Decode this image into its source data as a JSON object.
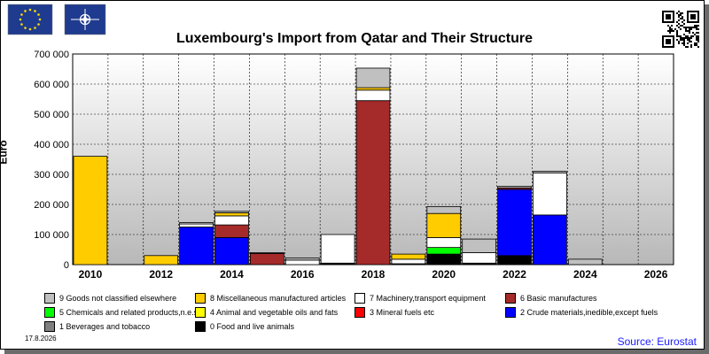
{
  "chart_data": {
    "type": "bar",
    "stacked": true,
    "title": "Luxembourg's Import from Qatar and Their Structure",
    "ylabel": "Euro",
    "ylim": [
      0,
      700000
    ],
    "yticks": [
      0,
      100000,
      200000,
      300000,
      400000,
      500000,
      600000,
      700000
    ],
    "ytick_labels": [
      "0",
      "100 000",
      "200 000",
      "300 000",
      "400 000",
      "500 000",
      "600 000",
      "700 000"
    ],
    "categories": [
      "2010",
      "2011",
      "2012",
      "2013",
      "2014",
      "2015",
      "2016",
      "2017",
      "2018",
      "2019",
      "2020",
      "2021",
      "2022",
      "2023",
      "2024",
      "2025",
      "2026"
    ],
    "xtick_labels": [
      "2010",
      "",
      "2012",
      "",
      "2014",
      "",
      "2016",
      "",
      "2018",
      "",
      "2020",
      "",
      "2022",
      "",
      "2024",
      "",
      "2026"
    ],
    "series": [
      {
        "name": "0 Food and live animals",
        "color": "#000000",
        "values": [
          0,
          0,
          0,
          0,
          0,
          0,
          0,
          5000,
          0,
          3000,
          35000,
          5000,
          30000,
          0,
          0,
          0,
          0
        ]
      },
      {
        "name": "1 Beverages and tobacco",
        "color": "#808080",
        "values": [
          0,
          0,
          0,
          0,
          0,
          0,
          0,
          0,
          0,
          0,
          0,
          0,
          0,
          0,
          0,
          0,
          0
        ]
      },
      {
        "name": "2 Crude materials,inedible,except fuels",
        "color": "#0000ff",
        "values": [
          0,
          0,
          0,
          125000,
          90000,
          0,
          0,
          0,
          0,
          0,
          0,
          0,
          220000,
          165000,
          0,
          0,
          0
        ]
      },
      {
        "name": "3 Mineral fuels etc",
        "color": "#ff0000",
        "values": [
          0,
          0,
          0,
          0,
          0,
          0,
          0,
          0,
          0,
          0,
          0,
          0,
          0,
          0,
          0,
          0,
          0
        ]
      },
      {
        "name": "4 Animal and vegetable oils and fats",
        "color": "#ffff00",
        "values": [
          0,
          0,
          0,
          0,
          0,
          0,
          0,
          0,
          0,
          0,
          0,
          0,
          0,
          0,
          0,
          0,
          0
        ]
      },
      {
        "name": "5 Chemicals and related products,n.e.s.",
        "color": "#00ff00",
        "values": [
          0,
          0,
          0,
          0,
          0,
          0,
          0,
          0,
          0,
          0,
          22000,
          0,
          0,
          0,
          0,
          0,
          0
        ]
      },
      {
        "name": "6 Basic manufactures",
        "color": "#a52a2a",
        "values": [
          0,
          0,
          0,
          0,
          42000,
          37000,
          0,
          0,
          545000,
          0,
          0,
          0,
          5000,
          0,
          0,
          0,
          0
        ]
      },
      {
        "name": "7 Machinery,transport equipment",
        "color": "#ffffff",
        "values": [
          0,
          0,
          0,
          10000,
          30000,
          0,
          15000,
          95000,
          35000,
          15000,
          33000,
          35000,
          0,
          140000,
          0,
          0,
          0
        ]
      },
      {
        "name": "8 Miscellaneous manufactured articles",
        "color": "#ffcc00",
        "values": [
          360000,
          0,
          30000,
          0,
          10000,
          0,
          0,
          0,
          8000,
          17000,
          80000,
          0,
          0,
          0,
          0,
          0,
          0
        ]
      },
      {
        "name": "9 Goods not classified elsewhere",
        "color": "#c0c0c0",
        "values": [
          0,
          0,
          0,
          5000,
          5000,
          3000,
          7000,
          0,
          65000,
          0,
          23000,
          45000,
          5000,
          5000,
          18000,
          0,
          0
        ]
      }
    ],
    "legend_position": "bottom",
    "grid": true
  },
  "legend": [
    {
      "label": "9 Goods not classified elsewhere",
      "color": "#c0c0c0"
    },
    {
      "label": "8 Miscellaneous manufactured articles",
      "color": "#ffcc00"
    },
    {
      "label": "7 Machinery,transport equipment",
      "color": "#ffffff"
    },
    {
      "label": "6 Basic manufactures",
      "color": "#a52a2a"
    },
    {
      "label": "5 Chemicals and related products,n.e.s.",
      "color": "#00ff00"
    },
    {
      "label": "4 Animal and vegetable oils and fats",
      "color": "#ffff00"
    },
    {
      "label": "3 Mineral fuels etc",
      "color": "#ff0000"
    },
    {
      "label": "2 Crude materials,inedible,except fuels",
      "color": "#0000ff"
    },
    {
      "label": "1 Beverages and tobacco",
      "color": "#808080"
    },
    {
      "label": "0 Food and live animals",
      "color": "#000000"
    }
  ],
  "footer": {
    "date": "17.8.2026",
    "source": "Source: Eurostat"
  },
  "icons": {
    "flag_left": "eu-flag-icon",
    "flag_right": "nato-flag-icon",
    "qr": "qr-code-icon"
  },
  "colors": {
    "flag_blue": "#1f3b8f",
    "source_text": "#1a1aff"
  }
}
